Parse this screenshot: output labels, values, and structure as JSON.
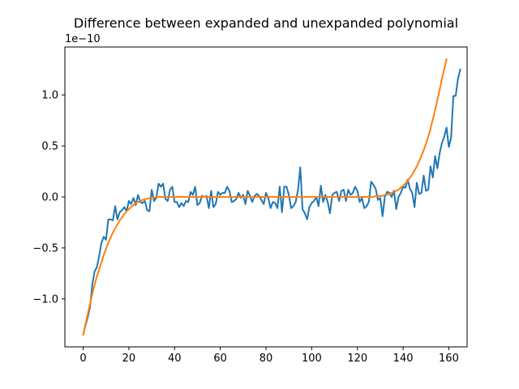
{
  "chart_data": {
    "type": "line",
    "title": "Difference between expanded and unexpanded polynomial",
    "xlabel": "",
    "ylabel": "",
    "y_offset_label": "1e−10",
    "xlim": [
      -8,
      168
    ],
    "ylim": [
      -1.47,
      1.47
    ],
    "x_ticks": [
      0,
      20,
      40,
      60,
      80,
      100,
      120,
      140,
      160
    ],
    "x_tick_labels": [
      "0",
      "20",
      "40",
      "60",
      "80",
      "100",
      "120",
      "140",
      "160"
    ],
    "y_ticks": [
      -1.0,
      -0.5,
      0.0,
      0.5,
      1.0
    ],
    "y_tick_labels": [
      "−1.0",
      "−0.5",
      "0.0",
      "0.5",
      "1.0"
    ],
    "grid": false,
    "legend": "none",
    "colors": {
      "series_1": "#1f77b4",
      "series_2": "#ff7f0e"
    },
    "series": [
      {
        "values": [
          -1.35,
          -1.26,
          -1.18,
          -1.08,
          -0.86,
          -0.73,
          -0.69,
          -0.58,
          -0.45,
          -0.39,
          -0.42,
          -0.22,
          -0.22,
          -0.23,
          -0.09,
          -0.22,
          -0.15,
          -0.13,
          -0.1,
          -0.14,
          -0.04,
          -0.07,
          -0.01,
          -0.08,
          0.02,
          -0.05,
          -0.06,
          -0.04,
          -0.13,
          -0.14,
          0.07,
          -0.04,
          -0.01,
          0.13,
          0.1,
          0.13,
          -0.02,
          -0.04,
          0.07,
          0.1,
          -0.05,
          -0.05,
          -0.1,
          -0.06,
          -0.09,
          -0.04,
          -0.05,
          0.05,
          0.02,
          0.1,
          -0.08,
          -0.06,
          0.01,
          0.0,
          0.01,
          -0.11,
          0.06,
          -0.1,
          -0.07,
          0.05,
          0.02,
          0.04,
          0.04,
          0.1,
          0.06,
          -0.05,
          -0.04,
          -0.02,
          0.04,
          -0.01,
          0.02,
          -0.07,
          0.06,
          0.01,
          -0.05,
          0.01,
          0.03,
          0.01,
          -0.03,
          -0.07,
          0.04,
          -0.01,
          -0.11,
          -0.05,
          -0.06,
          -0.11,
          0.1,
          -0.15,
          0.1,
          0.1,
          0.02,
          -0.11,
          -0.09,
          -0.05,
          0.07,
          0.29,
          -0.12,
          -0.16,
          -0.22,
          -0.1,
          -0.06,
          -0.04,
          0.0,
          -0.09,
          0.11,
          -0.05,
          0.02,
          -0.05,
          -0.16,
          0.02,
          0.04,
          0.05,
          -0.04,
          0.06,
          0.07,
          -0.04,
          0.07,
          0.02,
          0.04,
          0.1,
          0.06,
          -0.05,
          -0.01,
          -0.11,
          -0.09,
          -0.05,
          0.15,
          0.12,
          0.08,
          -0.03,
          -0.01,
          -0.19,
          0.0,
          0.05,
          0.04,
          0.0,
          0.06,
          -0.12,
          0.0,
          0.04,
          0.1,
          0.09,
          0.17,
          0.08,
          0.04,
          -0.1,
          0.14,
          0.03,
          0.04,
          0.21,
          0.06,
          0.07,
          0.3,
          0.19,
          0.4,
          0.28,
          0.43,
          0.53,
          0.59,
          0.68,
          0.49,
          0.58,
          0.99,
          0.99,
          1.16,
          1.25
        ]
      },
      {
        "values": [
          -1.35,
          -1.25,
          -1.15,
          -1.05,
          -0.95,
          -0.86,
          -0.78,
          -0.71,
          -0.64,
          -0.57,
          -0.51,
          -0.45,
          -0.4,
          -0.35,
          -0.31,
          -0.27,
          -0.23,
          -0.2,
          -0.17,
          -0.14,
          -0.12,
          -0.1,
          -0.08,
          -0.06,
          -0.05,
          -0.04,
          -0.03,
          -0.02,
          -0.02,
          -0.01,
          -0.01,
          -0.01,
          0,
          0,
          0,
          0,
          0,
          0,
          0,
          0,
          0,
          0,
          0,
          0,
          0,
          0,
          0,
          0,
          0,
          0,
          0,
          0,
          0,
          0,
          0,
          0,
          0,
          0,
          0,
          0,
          0,
          0,
          0,
          0,
          0,
          0,
          0,
          0,
          0,
          0,
          0,
          0,
          0,
          0,
          0,
          0,
          0,
          0,
          0,
          0,
          0,
          0,
          0,
          0,
          0,
          0,
          0,
          0,
          0,
          0,
          0,
          0,
          0,
          0,
          0,
          0,
          0,
          0,
          0,
          0,
          0,
          0,
          0,
          0,
          0,
          0,
          0,
          0,
          0,
          0,
          0,
          0,
          0,
          0,
          0,
          0,
          0,
          0,
          0,
          0,
          0,
          0,
          0,
          0,
          0,
          0,
          0,
          0,
          0.01,
          0.01,
          0.01,
          0.01,
          0.02,
          0.02,
          0.03,
          0.04,
          0.05,
          0.06,
          0.07,
          0.09,
          0.11,
          0.13,
          0.16,
          0.19,
          0.22,
          0.26,
          0.3,
          0.35,
          0.4,
          0.46,
          0.52,
          0.59,
          0.67,
          0.76,
          0.85,
          0.95,
          1.05,
          1.16,
          1.25,
          1.35
        ]
      }
    ]
  }
}
